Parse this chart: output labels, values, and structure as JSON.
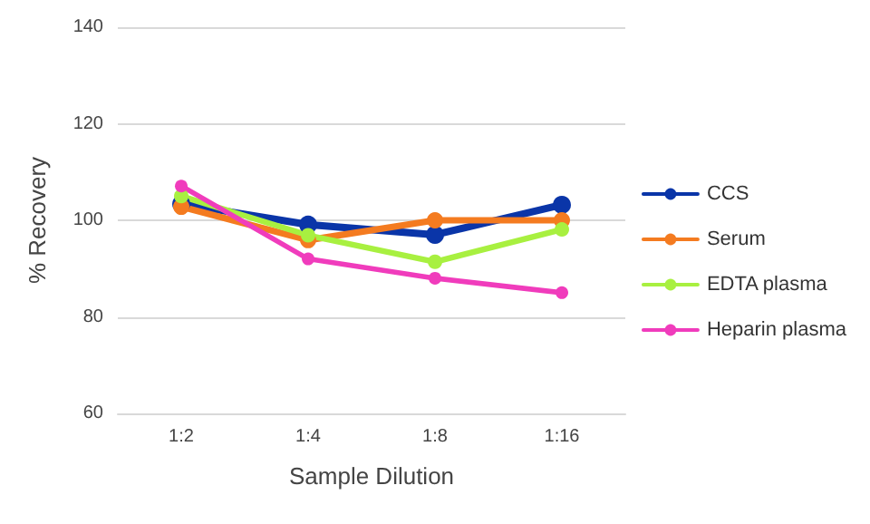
{
  "chart_data": {
    "type": "line",
    "xlabel": "Sample Dilution",
    "ylabel": "% Recovery",
    "categories": [
      "1:2",
      "1:4",
      "1:8",
      "1:16"
    ],
    "series": [
      {
        "name": "CCS",
        "color": "#0a35a8",
        "values": [
          103.4,
          99.1,
          97,
          103.2
        ]
      },
      {
        "name": "Serum",
        "color": "#f47b20",
        "values": [
          102.8,
          95.9,
          100,
          100
        ]
      },
      {
        "name": "EDTA plasma",
        "color": "#a8f040",
        "values": [
          105,
          96.9,
          91.4,
          98.1
        ]
      },
      {
        "name": "Heparin plasma",
        "color": "#f03cbc",
        "values": [
          107.1,
          92,
          88,
          85
        ]
      }
    ],
    "ylim": [
      60,
      140
    ],
    "yticks": [
      60,
      80,
      100,
      120,
      140
    ],
    "grid": "y",
    "legend": "right",
    "marker": "circle",
    "line_style": "solid"
  }
}
